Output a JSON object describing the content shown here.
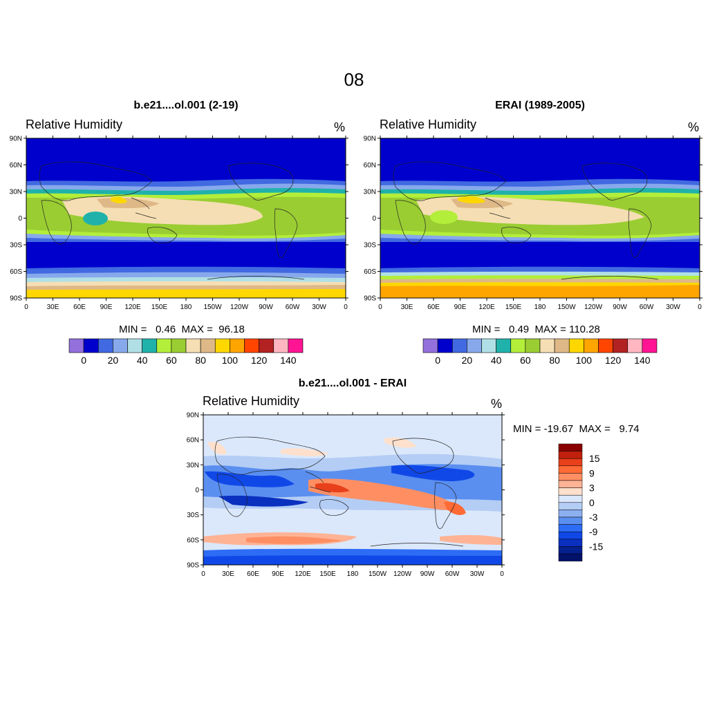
{
  "page_title": "08",
  "panels": [
    {
      "title": "b.e21....ol.001 (2-19)",
      "variable": "Relative Humidity",
      "units": "%",
      "min_label": "MIN =",
      "min_value": "0.46",
      "max_label": "MAX =",
      "max_value": "96.18",
      "y_ticks": [
        "90N",
        "60N",
        "30N",
        "0",
        "30S",
        "60S",
        "90S"
      ],
      "x_ticks": [
        "0",
        "30E",
        "60E",
        "90E",
        "120E",
        "150E",
        "180",
        "150W",
        "120W",
        "90W",
        "60W",
        "30W",
        "0"
      ]
    },
    {
      "title": "ERAI (1989-2005)",
      "variable": "Relative Humidity",
      "units": "%",
      "min_label": "MIN =",
      "min_value": "0.49",
      "max_label": "MAX =",
      "max_value": "110.28",
      "y_ticks": [
        "90N",
        "60N",
        "30N",
        "0",
        "30S",
        "60S",
        "90S"
      ],
      "x_ticks": [
        "0",
        "30E",
        "60E",
        "90E",
        "120E",
        "150E",
        "180",
        "150W",
        "120W",
        "90W",
        "60W",
        "30W",
        "0"
      ]
    },
    {
      "title": "b.e21....ol.001 - ERAI",
      "variable": "Relative Humidity",
      "units": "%",
      "min_label": "MIN =",
      "min_value": "-19.67",
      "max_label": "MAX =",
      "max_value": "9.74",
      "y_ticks": [
        "90N",
        "60N",
        "30N",
        "0",
        "30S",
        "60S",
        "90S"
      ],
      "x_ticks": [
        "0",
        "30E",
        "60E",
        "90E",
        "120E",
        "150E",
        "180",
        "150W",
        "120W",
        "90W",
        "60W",
        "30W",
        "0"
      ]
    }
  ],
  "colorbar_abs": {
    "colors": [
      "#9370db",
      "#0000cd",
      "#4169e1",
      "#87a9ec",
      "#b0e0e6",
      "#20b2aa",
      "#b3ee3a",
      "#9acd32",
      "#f5deb3",
      "#deb887",
      "#ffd700",
      "#ffa500",
      "#ff4500",
      "#b22222",
      "#ffb6c1",
      "#ff1493"
    ],
    "labels": [
      "0",
      "20",
      "40",
      "60",
      "80",
      "100",
      "120",
      "140"
    ]
  },
  "colorbar_diff": {
    "colors": [
      "#8b0000",
      "#c0200c",
      "#e8401a",
      "#ff6a35",
      "#ff8f63",
      "#ffb395",
      "#ffe0cc",
      "#dbe8fb",
      "#b4cdf5",
      "#8cb0f0",
      "#5a8ff0",
      "#2d6cf5",
      "#1048e8",
      "#0a30c0",
      "#05208f",
      "#02126a"
    ],
    "labels": [
      "15",
      "9",
      "3",
      "0",
      "-3",
      "-9",
      "-15"
    ]
  },
  "chart_data": [
    {
      "type": "heatmap",
      "title": "b.e21....ol.001 (2-19)",
      "variable": "Relative Humidity",
      "units": "%",
      "x_range": [
        0,
        360
      ],
      "y_range": [
        -90,
        90
      ],
      "min": 0.46,
      "max": 96.18,
      "zonal_levels": [
        {
          "lat_from": 90,
          "lat_to": 30,
          "value": 10
        },
        {
          "lat_from": 30,
          "lat_to": 20,
          "value": 40
        },
        {
          "lat_from": 20,
          "lat_to": 10,
          "value": 60
        },
        {
          "lat_from": 10,
          "lat_to": -10,
          "value": 80
        },
        {
          "lat_from": -10,
          "lat_to": -20,
          "value": 60
        },
        {
          "lat_from": -20,
          "lat_to": -60,
          "value": 10
        },
        {
          "lat_from": -60,
          "lat_to": -75,
          "value": 40
        },
        {
          "lat_from": -75,
          "lat_to": -90,
          "value": 100
        }
      ]
    },
    {
      "type": "heatmap",
      "title": "ERAI (1989-2005)",
      "variable": "Relative Humidity",
      "units": "%",
      "x_range": [
        0,
        360
      ],
      "y_range": [
        -90,
        90
      ],
      "min": 0.49,
      "max": 110.28,
      "zonal_levels": [
        {
          "lat_from": 90,
          "lat_to": 30,
          "value": 10
        },
        {
          "lat_from": 30,
          "lat_to": 20,
          "value": 40
        },
        {
          "lat_from": 20,
          "lat_to": 10,
          "value": 60
        },
        {
          "lat_from": 10,
          "lat_to": -10,
          "value": 80
        },
        {
          "lat_from": -10,
          "lat_to": -20,
          "value": 60
        },
        {
          "lat_from": -20,
          "lat_to": -60,
          "value": 10
        },
        {
          "lat_from": -60,
          "lat_to": -75,
          "value": 60
        },
        {
          "lat_from": -75,
          "lat_to": -90,
          "value": 110
        }
      ]
    },
    {
      "type": "heatmap",
      "title": "b.e21....ol.001 - ERAI",
      "variable": "Relative Humidity",
      "units": "%",
      "x_range": [
        0,
        360
      ],
      "y_range": [
        -90,
        90
      ],
      "min": -19.67,
      "max": 9.74,
      "contour_levels": [
        -15,
        -9,
        -3,
        0,
        3,
        9,
        15
      ]
    }
  ]
}
